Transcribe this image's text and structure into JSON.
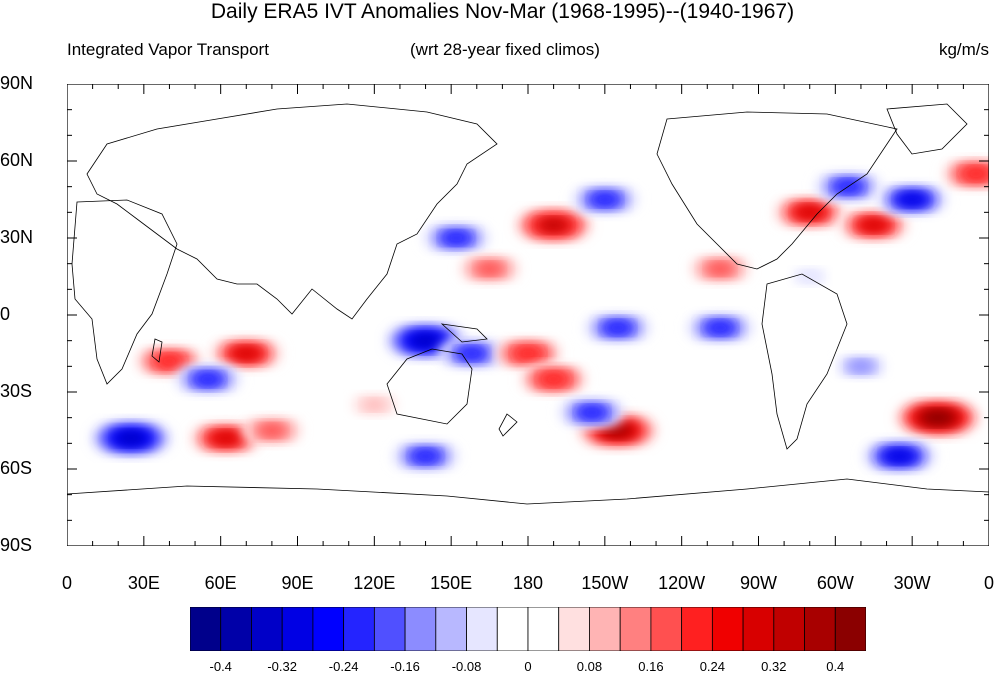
{
  "title": "Daily ERA5 IVT Anomalies Nov-Mar (1968-1995)--(1940-1967)",
  "subtitle_left": "Integrated Vapor Transport",
  "subtitle_center": "(wrt 28-year fixed climos)",
  "subtitle_right": "kg/m/s",
  "lat_ticks": [
    "90N",
    "60N",
    "30N",
    "0",
    "30S",
    "60S",
    "90S"
  ],
  "lon_ticks": [
    "0",
    "30E",
    "60E",
    "90E",
    "120E",
    "150E",
    "180",
    "150W",
    "120W",
    "90W",
    "60W",
    "30W",
    "0"
  ],
  "colorbar": {
    "labels": [
      "-0.4",
      "-0.32",
      "-0.24",
      "-0.16",
      "-0.08",
      "0",
      "0.08",
      "0.16",
      "0.24",
      "0.32",
      "0.4"
    ],
    "colors": [
      "#00008b",
      "#0000a8",
      "#0000c8",
      "#0000e4",
      "#0000ff",
      "#2424ff",
      "#5050ff",
      "#8c8cff",
      "#b8b8ff",
      "#e6e6ff",
      "#ffffff",
      "#ffffff",
      "#ffe0e0",
      "#ffb4b4",
      "#ff8080",
      "#ff5050",
      "#ff2020",
      "#f00000",
      "#d80000",
      "#c00000",
      "#a80000",
      "#8b0000"
    ]
  },
  "chart_data": {
    "type": "heatmap",
    "variable": "IVT anomaly",
    "units": "kg/m/s",
    "lon_range": [
      0,
      360
    ],
    "lat_range": [
      -90,
      90
    ],
    "anomaly_features": [
      {
        "lon": 140,
        "lat": -10,
        "value": -0.36
      },
      {
        "lon": 158,
        "lat": -15,
        "value": -0.24
      },
      {
        "lon": 120,
        "lat": -35,
        "value": 0.1
      },
      {
        "lon": 70,
        "lat": -15,
        "value": 0.3
      },
      {
        "lon": 40,
        "lat": -18,
        "value": 0.24
      },
      {
        "lon": 55,
        "lat": -25,
        "value": -0.24
      },
      {
        "lon": 25,
        "lat": -48,
        "value": -0.36
      },
      {
        "lon": 62,
        "lat": -48,
        "value": 0.3
      },
      {
        "lon": 80,
        "lat": -45,
        "value": 0.16
      },
      {
        "lon": 140,
        "lat": -55,
        "value": -0.24
      },
      {
        "lon": 152,
        "lat": 30,
        "value": -0.24
      },
      {
        "lon": 190,
        "lat": 35,
        "value": 0.32
      },
      {
        "lon": 210,
        "lat": 45,
        "value": -0.24
      },
      {
        "lon": 165,
        "lat": 18,
        "value": 0.16
      },
      {
        "lon": 215,
        "lat": -5,
        "value": -0.24
      },
      {
        "lon": 180,
        "lat": -15,
        "value": 0.24
      },
      {
        "lon": 190,
        "lat": -25,
        "value": 0.24
      },
      {
        "lon": 215,
        "lat": -45,
        "value": 0.36
      },
      {
        "lon": 205,
        "lat": -38,
        "value": -0.24
      },
      {
        "lon": 255,
        "lat": -5,
        "value": -0.24
      },
      {
        "lon": 290,
        "lat": 40,
        "value": 0.3
      },
      {
        "lon": 315,
        "lat": 35,
        "value": 0.28
      },
      {
        "lon": 305,
        "lat": 50,
        "value": -0.24
      },
      {
        "lon": 330,
        "lat": 45,
        "value": -0.28
      },
      {
        "lon": 340,
        "lat": -40,
        "value": 0.42
      },
      {
        "lon": 325,
        "lat": -55,
        "value": -0.32
      },
      {
        "lon": 310,
        "lat": -20,
        "value": -0.16
      },
      {
        "lon": 355,
        "lat": 55,
        "value": 0.24
      },
      {
        "lon": 255,
        "lat": 18,
        "value": 0.16
      },
      {
        "lon": 290,
        "lat": 15,
        "value": -0.08
      }
    ]
  }
}
